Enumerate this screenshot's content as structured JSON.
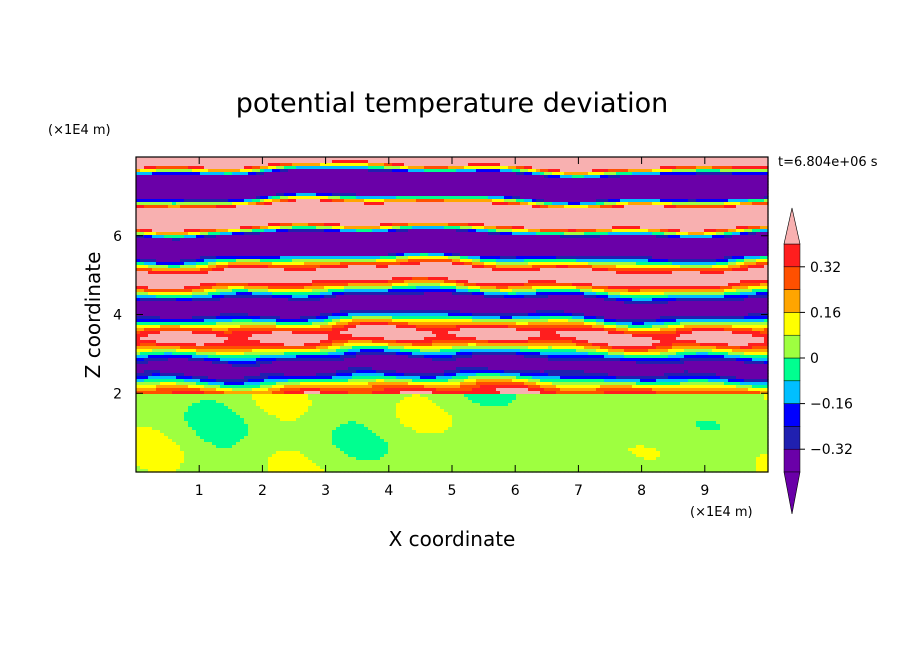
{
  "chart_data": {
    "type": "heatmap",
    "title": "potential temperature deviation",
    "xlabel": "X coordinate",
    "ylabel": "Z coordinate",
    "x_unit": "(×1E4 m)",
    "z_unit": "(×1E4 m)",
    "time_label": "t=6.804e+06 s",
    "xlim": [
      0,
      10
    ],
    "zlim": [
      0,
      8
    ],
    "x_ticks": [
      1,
      2,
      3,
      4,
      5,
      6,
      7,
      8,
      9
    ],
    "z_ticks": [
      2,
      4,
      6
    ],
    "colorbar": {
      "levels": [
        -0.4,
        -0.32,
        -0.24,
        -0.16,
        -0.08,
        0,
        0.08,
        0.16,
        0.24,
        0.32,
        0.4
      ],
      "labels": [
        {
          "value": 0.32,
          "text": "0.32"
        },
        {
          "value": 0.16,
          "text": "0.16"
        },
        {
          "value": 0,
          "text": "0"
        },
        {
          "value": -0.16,
          "text": "−0.16"
        },
        {
          "value": -0.32,
          "text": "−0.32"
        }
      ],
      "colors": [
        "#6a00a8",
        "#2020b0",
        "#0000ff",
        "#00bfff",
        "#00ff90",
        "#9eff40",
        "#ffff00",
        "#ffa500",
        "#ff5000",
        "#ff1e1e",
        "#f8b0b0"
      ],
      "under_color": "#6a00a8",
      "over_color": "#f8b0b0"
    },
    "field_structure": [
      {
        "z_range": [
          0,
          2
        ],
        "pattern": "near-zero",
        "dominant_colors": [
          "#00ff90",
          "#9eff40"
        ]
      },
      {
        "z_range": [
          2,
          5.5
        ],
        "pattern": "alternating horizontal bands",
        "dominant_colors": [
          "#2020b0",
          "#00bfff",
          "#00ff90",
          "#9eff40",
          "#ffff00",
          "#ffa500",
          "#ff1e1e"
        ]
      },
      {
        "z_range": [
          5.5,
          8
        ],
        "pattern": "saturated alternating bands",
        "dominant_colors": [
          "#6a00a8",
          "#f8b0b0"
        ]
      }
    ]
  }
}
